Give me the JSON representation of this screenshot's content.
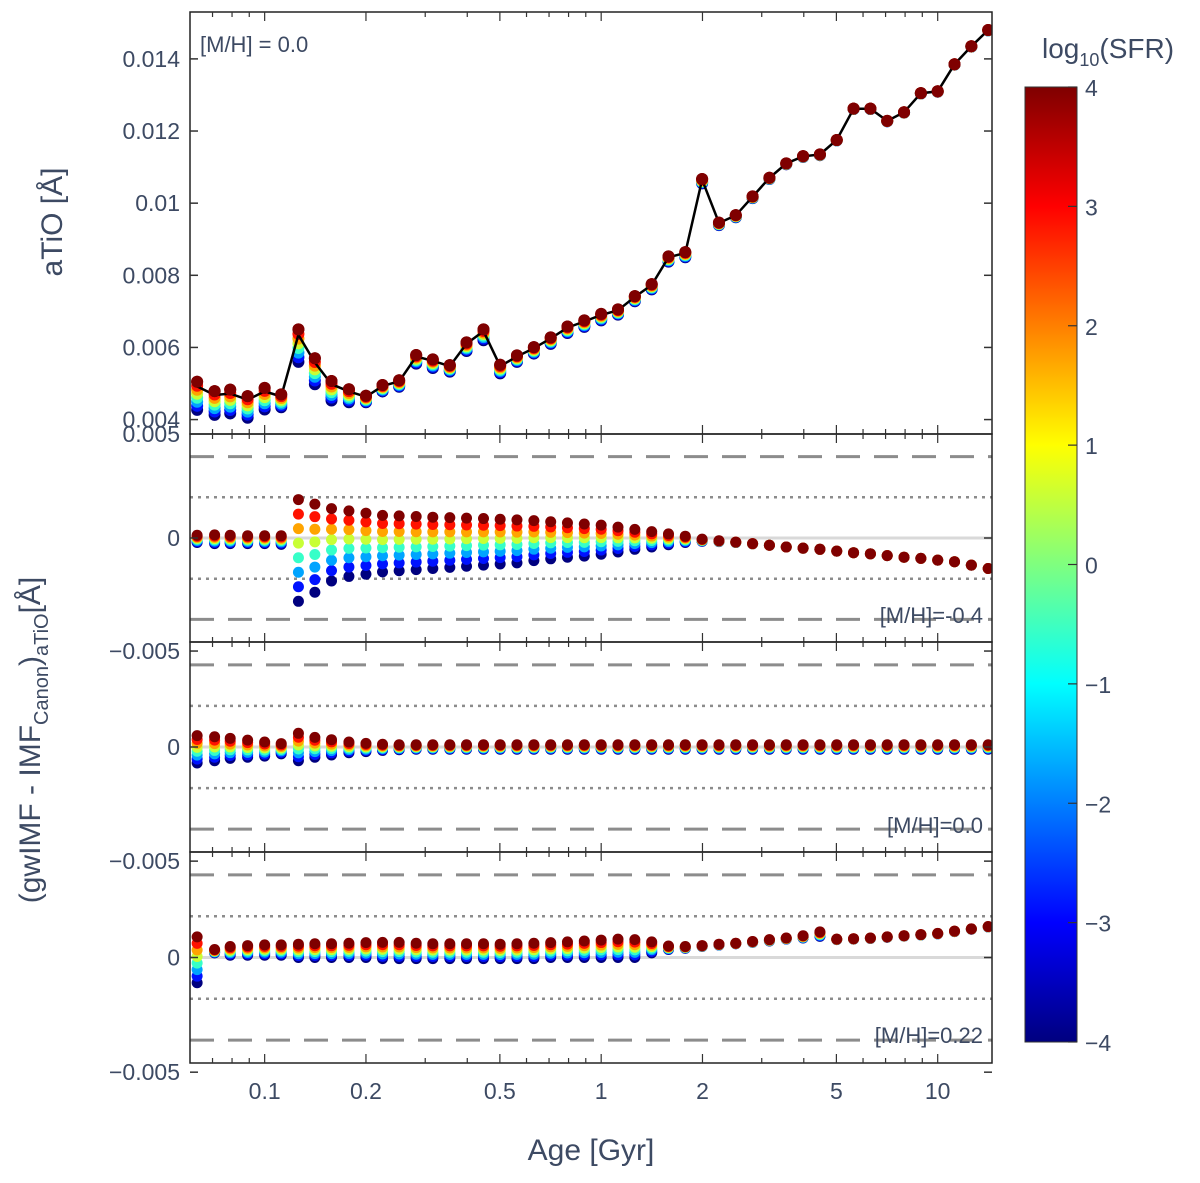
{
  "chart_data": [
    {
      "type": "line",
      "panel": "top",
      "title": "",
      "annotation": "[M/H] = 0.0",
      "xlabel": "",
      "ylabel": "aTiO [Å]",
      "xscale": "log",
      "xlim": [
        0.06,
        14.5
      ],
      "ylim": [
        0.0036,
        0.0153
      ],
      "yticks": [
        0.004,
        0.006,
        0.008,
        0.01,
        0.012,
        0.014
      ],
      "ytick_labels": [
        "0.004",
        "0.006",
        "0.008",
        "0.01",
        "0.012",
        "0.014"
      ],
      "ytop_label": "0.005",
      "line_color": "#000000",
      "x": [
        0.063,
        0.071,
        0.079,
        0.089,
        0.1,
        0.112,
        0.126,
        0.141,
        0.158,
        0.178,
        0.2,
        0.224,
        0.251,
        0.282,
        0.316,
        0.355,
        0.398,
        0.447,
        0.501,
        0.562,
        0.631,
        0.708,
        0.794,
        0.891,
        1.0,
        1.122,
        1.259,
        1.413,
        1.585,
        1.778,
        1.995,
        2.239,
        2.512,
        2.818,
        3.162,
        3.548,
        3.981,
        4.467,
        5.012,
        5.623,
        6.31,
        7.079,
        7.943,
        8.913,
        10.0,
        11.22,
        12.59,
        14.13
      ],
      "y": [
        0.00492,
        0.00468,
        0.00472,
        0.00455,
        0.00478,
        0.00464,
        0.00635,
        0.00558,
        0.00498,
        0.00478,
        0.00463,
        0.00493,
        0.00506,
        0.00575,
        0.00563,
        0.00548,
        0.0061,
        0.00645,
        0.00548,
        0.00575,
        0.00598,
        0.00625,
        0.00655,
        0.00672,
        0.0069,
        0.00703,
        0.0074,
        0.00773,
        0.0085,
        0.00862,
        0.01065,
        0.00945,
        0.00966,
        0.01018,
        0.0107,
        0.0111,
        0.0113,
        0.01135,
        0.01175,
        0.01262,
        0.01262,
        0.01228,
        0.01252,
        0.01305,
        0.0131,
        0.01385,
        0.01435,
        0.0148
      ],
      "sfr_spread": [
        0.00065,
        0.00055,
        0.00055,
        0.0005,
        0.0005,
        0.0003,
        0.00075,
        0.0006,
        0.00045,
        0.0003,
        0.00015,
        0.00015,
        0.00015,
        0.0002,
        0.0002,
        0.00015,
        0.0002,
        0.00025,
        0.0002,
        0.00015,
        0.00015,
        0.00015,
        0.00015,
        0.00015,
        0.00015,
        0.00012,
        0.00012,
        0.00012,
        0.00012,
        0.00012,
        0.0001,
        6e-05,
        5e-05,
        4e-05,
        3e-05,
        2e-05,
        2e-05,
        2e-05,
        1e-05,
        1e-05,
        1e-05,
        1e-05,
        1e-05,
        1e-05,
        1e-05,
        1e-05,
        1e-05,
        1e-05
      ]
    },
    {
      "type": "scatter",
      "panel": "middle-1",
      "annotation": "[M/H]=-0.4",
      "xscale": "log",
      "ylim": [
        -0.0046,
        0.0046
      ],
      "yticks": [
        0,
        -0.005
      ],
      "ytick_labels": [
        "0",
        "−0.005"
      ],
      "reference_lines": {
        "dashed": [
          0.0036,
          -0.0036
        ],
        "dotted": [
          0.0018,
          -0.0018
        ],
        "solid": [
          0
        ]
      },
      "x": [
        0.063,
        0.071,
        0.079,
        0.089,
        0.1,
        0.112,
        0.126,
        0.141,
        0.158,
        0.178,
        0.2,
        0.224,
        0.251,
        0.282,
        0.316,
        0.355,
        0.398,
        0.447,
        0.501,
        0.562,
        0.631,
        0.708,
        0.794,
        0.891,
        1.0,
        1.122,
        1.259,
        1.413,
        1.585,
        1.778,
        1.995,
        2.239,
        2.512,
        2.818,
        3.162,
        3.548,
        3.981,
        4.467,
        5.012,
        5.623,
        6.31,
        7.079,
        7.943,
        8.913,
        10.0,
        11.22,
        12.59,
        14.13
      ],
      "y_top": [
        0.00012,
        0.00014,
        0.00012,
        0.0001,
        0.0001,
        0.0001,
        0.0017,
        0.0015,
        0.0013,
        0.0012,
        0.0011,
        0.001,
        0.00098,
        0.00095,
        0.00092,
        0.0009,
        0.00088,
        0.00086,
        0.00083,
        0.0008,
        0.00077,
        0.00072,
        0.00067,
        0.00062,
        0.00057,
        0.00048,
        0.00038,
        0.00028,
        0.00018,
        8e-05,
        -5e-05,
        -0.00012,
        -0.00018,
        -0.00025,
        -0.00032,
        -0.0004,
        -0.00045,
        -0.0005,
        -0.00058,
        -0.00065,
        -0.0007,
        -0.00078,
        -0.00085,
        -0.0009,
        -0.00098,
        -0.00105,
        -0.0012,
        -0.00135
      ],
      "y_bottom": [
        -0.0002,
        -0.00025,
        -0.00025,
        -0.00025,
        -0.00025,
        -0.00028,
        -0.0028,
        -0.0024,
        -0.0019,
        -0.0017,
        -0.0016,
        -0.0015,
        -0.00145,
        -0.0014,
        -0.00135,
        -0.0013,
        -0.00125,
        -0.0012,
        -0.00115,
        -0.0011,
        -0.001,
        -0.00092,
        -0.00085,
        -0.0008,
        -0.00072,
        -0.00062,
        -0.0005,
        -0.0004,
        -0.0003,
        -0.0002,
        -0.00015,
        -0.00016,
        -0.0002,
        -0.00026,
        -0.00032,
        -0.0004,
        -0.00045,
        -0.0005,
        -0.00058,
        -0.00065,
        -0.0007,
        -0.00078,
        -0.00085,
        -0.0009,
        -0.00098,
        -0.00105,
        -0.0012,
        -0.00135
      ]
    },
    {
      "type": "scatter",
      "panel": "middle-2",
      "annotation": "[M/H]=0.0",
      "xscale": "log",
      "ylim": [
        -0.0046,
        0.0046
      ],
      "yticks": [
        0,
        -0.005
      ],
      "ytick_labels": [
        "0",
        "−0.005"
      ],
      "reference_lines": {
        "dashed": [
          0.0036,
          -0.0036
        ],
        "dotted": [
          0.0018,
          -0.0018
        ],
        "solid": [
          0
        ]
      },
      "x": [
        0.063,
        0.071,
        0.079,
        0.089,
        0.1,
        0.112,
        0.126,
        0.141,
        0.158,
        0.178,
        0.2,
        0.224,
        0.251,
        0.282,
        0.316,
        0.355,
        0.398,
        0.447,
        0.501,
        0.562,
        0.631,
        0.708,
        0.794,
        0.891,
        1.0,
        1.122,
        1.259,
        1.413,
        1.585,
        1.778,
        1.995,
        2.239,
        2.512,
        2.818,
        3.162,
        3.548,
        3.981,
        4.467,
        5.012,
        5.623,
        6.31,
        7.079,
        7.943,
        8.913,
        10.0,
        11.22,
        12.59,
        14.13
      ],
      "y_top": [
        0.0005,
        0.00045,
        0.00038,
        0.0003,
        0.00022,
        0.00015,
        0.0006,
        0.00042,
        0.00032,
        0.00022,
        0.00016,
        0.00012,
        0.0001,
        0.0001,
        0.0001,
        0.0001,
        0.0001,
        0.0001,
        0.0001,
        0.0001,
        0.0001,
        0.0001,
        0.0001,
        0.0001,
        0.0001,
        0.0001,
        0.0001,
        0.0001,
        0.0001,
        0.0001,
        0.0001,
        0.0001,
        0.0001,
        0.0001,
        0.0001,
        0.0001,
        0.0001,
        0.0001,
        0.0001,
        0.0001,
        0.0001,
        0.0001,
        0.0001,
        0.0001,
        0.0001,
        0.0001,
        0.0001,
        0.0001
      ],
      "y_bottom": [
        -0.0007,
        -0.0006,
        -0.0005,
        -0.00045,
        -0.0004,
        -0.0003,
        -0.0006,
        -0.00045,
        -0.00035,
        -0.00025,
        -0.0002,
        -0.00015,
        -0.00012,
        -0.0001,
        -0.0001,
        -0.0001,
        -0.0001,
        -0.0001,
        -0.0001,
        -0.0001,
        -0.0001,
        -0.0001,
        -0.0001,
        -0.0001,
        -0.0001,
        -0.0001,
        -0.0001,
        -0.0001,
        -0.0001,
        -0.0001,
        -0.0001,
        -0.0001,
        -0.0001,
        -0.0001,
        -0.0001,
        -0.0001,
        -0.0001,
        -0.0001,
        -0.0001,
        -0.0001,
        -0.0001,
        -0.0001,
        -0.0001,
        -0.0001,
        -0.0001,
        -0.0001,
        -0.0001,
        -0.0001
      ]
    },
    {
      "type": "scatter",
      "panel": "bottom",
      "annotation": "[M/H]=0.22",
      "xscale": "log",
      "xlabel": "Age [Gyr]",
      "ylabel": "(gwIMF - IMF_Canon)_aTiO [Å]",
      "ylim": [
        -0.0046,
        0.0046
      ],
      "yticks": [
        0,
        -0.005
      ],
      "ytick_labels": [
        "0",
        "−0.005"
      ],
      "ytop_label": "−0.005",
      "xticks": [
        0.1,
        0.2,
        0.5,
        1,
        2,
        5,
        10
      ],
      "xtick_labels": [
        "0.1",
        "0.2",
        "0.5",
        "1",
        "2",
        "5",
        "10"
      ],
      "reference_lines": {
        "dashed": [
          0.0036,
          -0.0036
        ],
        "dotted": [
          0.0018,
          -0.0018
        ],
        "solid": [
          0
        ]
      },
      "x": [
        0.063,
        0.071,
        0.079,
        0.089,
        0.1,
        0.112,
        0.126,
        0.141,
        0.158,
        0.178,
        0.2,
        0.224,
        0.251,
        0.282,
        0.316,
        0.355,
        0.398,
        0.447,
        0.501,
        0.562,
        0.631,
        0.708,
        0.794,
        0.891,
        1.0,
        1.122,
        1.259,
        1.413,
        1.585,
        1.778,
        1.995,
        2.239,
        2.512,
        2.818,
        3.162,
        3.548,
        3.981,
        4.467,
        5.012,
        5.623,
        6.31,
        7.079,
        7.943,
        8.913,
        10.0,
        11.22,
        12.59,
        14.13
      ],
      "y_top": [
        0.0009,
        0.00035,
        0.00048,
        0.00052,
        0.00055,
        0.00055,
        0.00058,
        0.0006,
        0.0006,
        0.00062,
        0.00065,
        0.00066,
        0.00066,
        0.00062,
        0.0006,
        0.0006,
        0.0006,
        0.0006,
        0.00058,
        0.0006,
        0.00062,
        0.00065,
        0.00068,
        0.00072,
        0.00076,
        0.0008,
        0.00078,
        0.00068,
        0.0005,
        0.00048,
        0.00052,
        0.00058,
        0.00062,
        0.0007,
        0.00078,
        0.00085,
        0.00095,
        0.00112,
        0.0008,
        0.00082,
        0.00085,
        0.0009,
        0.00095,
        0.001,
        0.00105,
        0.00115,
        0.00125,
        0.00135
      ],
      "y_bottom": [
        -0.0011,
        0.0002,
        0.0001,
        0.0001,
        0.0001,
        0.0001,
        0.0,
        0.0,
        0.0,
        0.0,
        0.0,
        -5e-05,
        -5e-05,
        -5e-05,
        -5e-05,
        -5e-05,
        -5e-05,
        -5e-05,
        -5e-05,
        -5e-05,
        -5e-05,
        0.0,
        0.0,
        0.0,
        0.0,
        0.0,
        0.0,
        0.0002,
        0.00035,
        0.0004,
        0.00048,
        0.00054,
        0.0006,
        0.00066,
        0.00072,
        0.0008,
        0.00085,
        0.00092,
        0.00078,
        0.0008,
        0.00083,
        0.00088,
        0.00093,
        0.00098,
        0.00103,
        0.00113,
        0.00123,
        0.00133
      ]
    }
  ],
  "colorbar": {
    "title": "log10(SFR)",
    "title_main": "log",
    "title_sub": "10",
    "title_rest": "(SFR)",
    "min": -4,
    "max": 4,
    "tick_labels": [
      "4",
      "3",
      "2",
      "1",
      "0",
      "−1",
      "−2",
      "−3",
      "−4"
    ],
    "colors": [
      "#00007f",
      "#0000ff",
      "#007fff",
      "#00ffff",
      "#7fff7f",
      "#ffff00",
      "#ff7f00",
      "#ff0000",
      "#7f0000"
    ]
  },
  "labels": {
    "top_ylabel": "aTiO [Å]",
    "shared_ylabel_main": "(gwIMF - IMF",
    "shared_ylabel_sub1": "Canon",
    "shared_ylabel_mid": ")",
    "shared_ylabel_sub2": "aTiO",
    "shared_ylabel_end": "[Å]",
    "xlabel": "Age [Gyr]"
  }
}
